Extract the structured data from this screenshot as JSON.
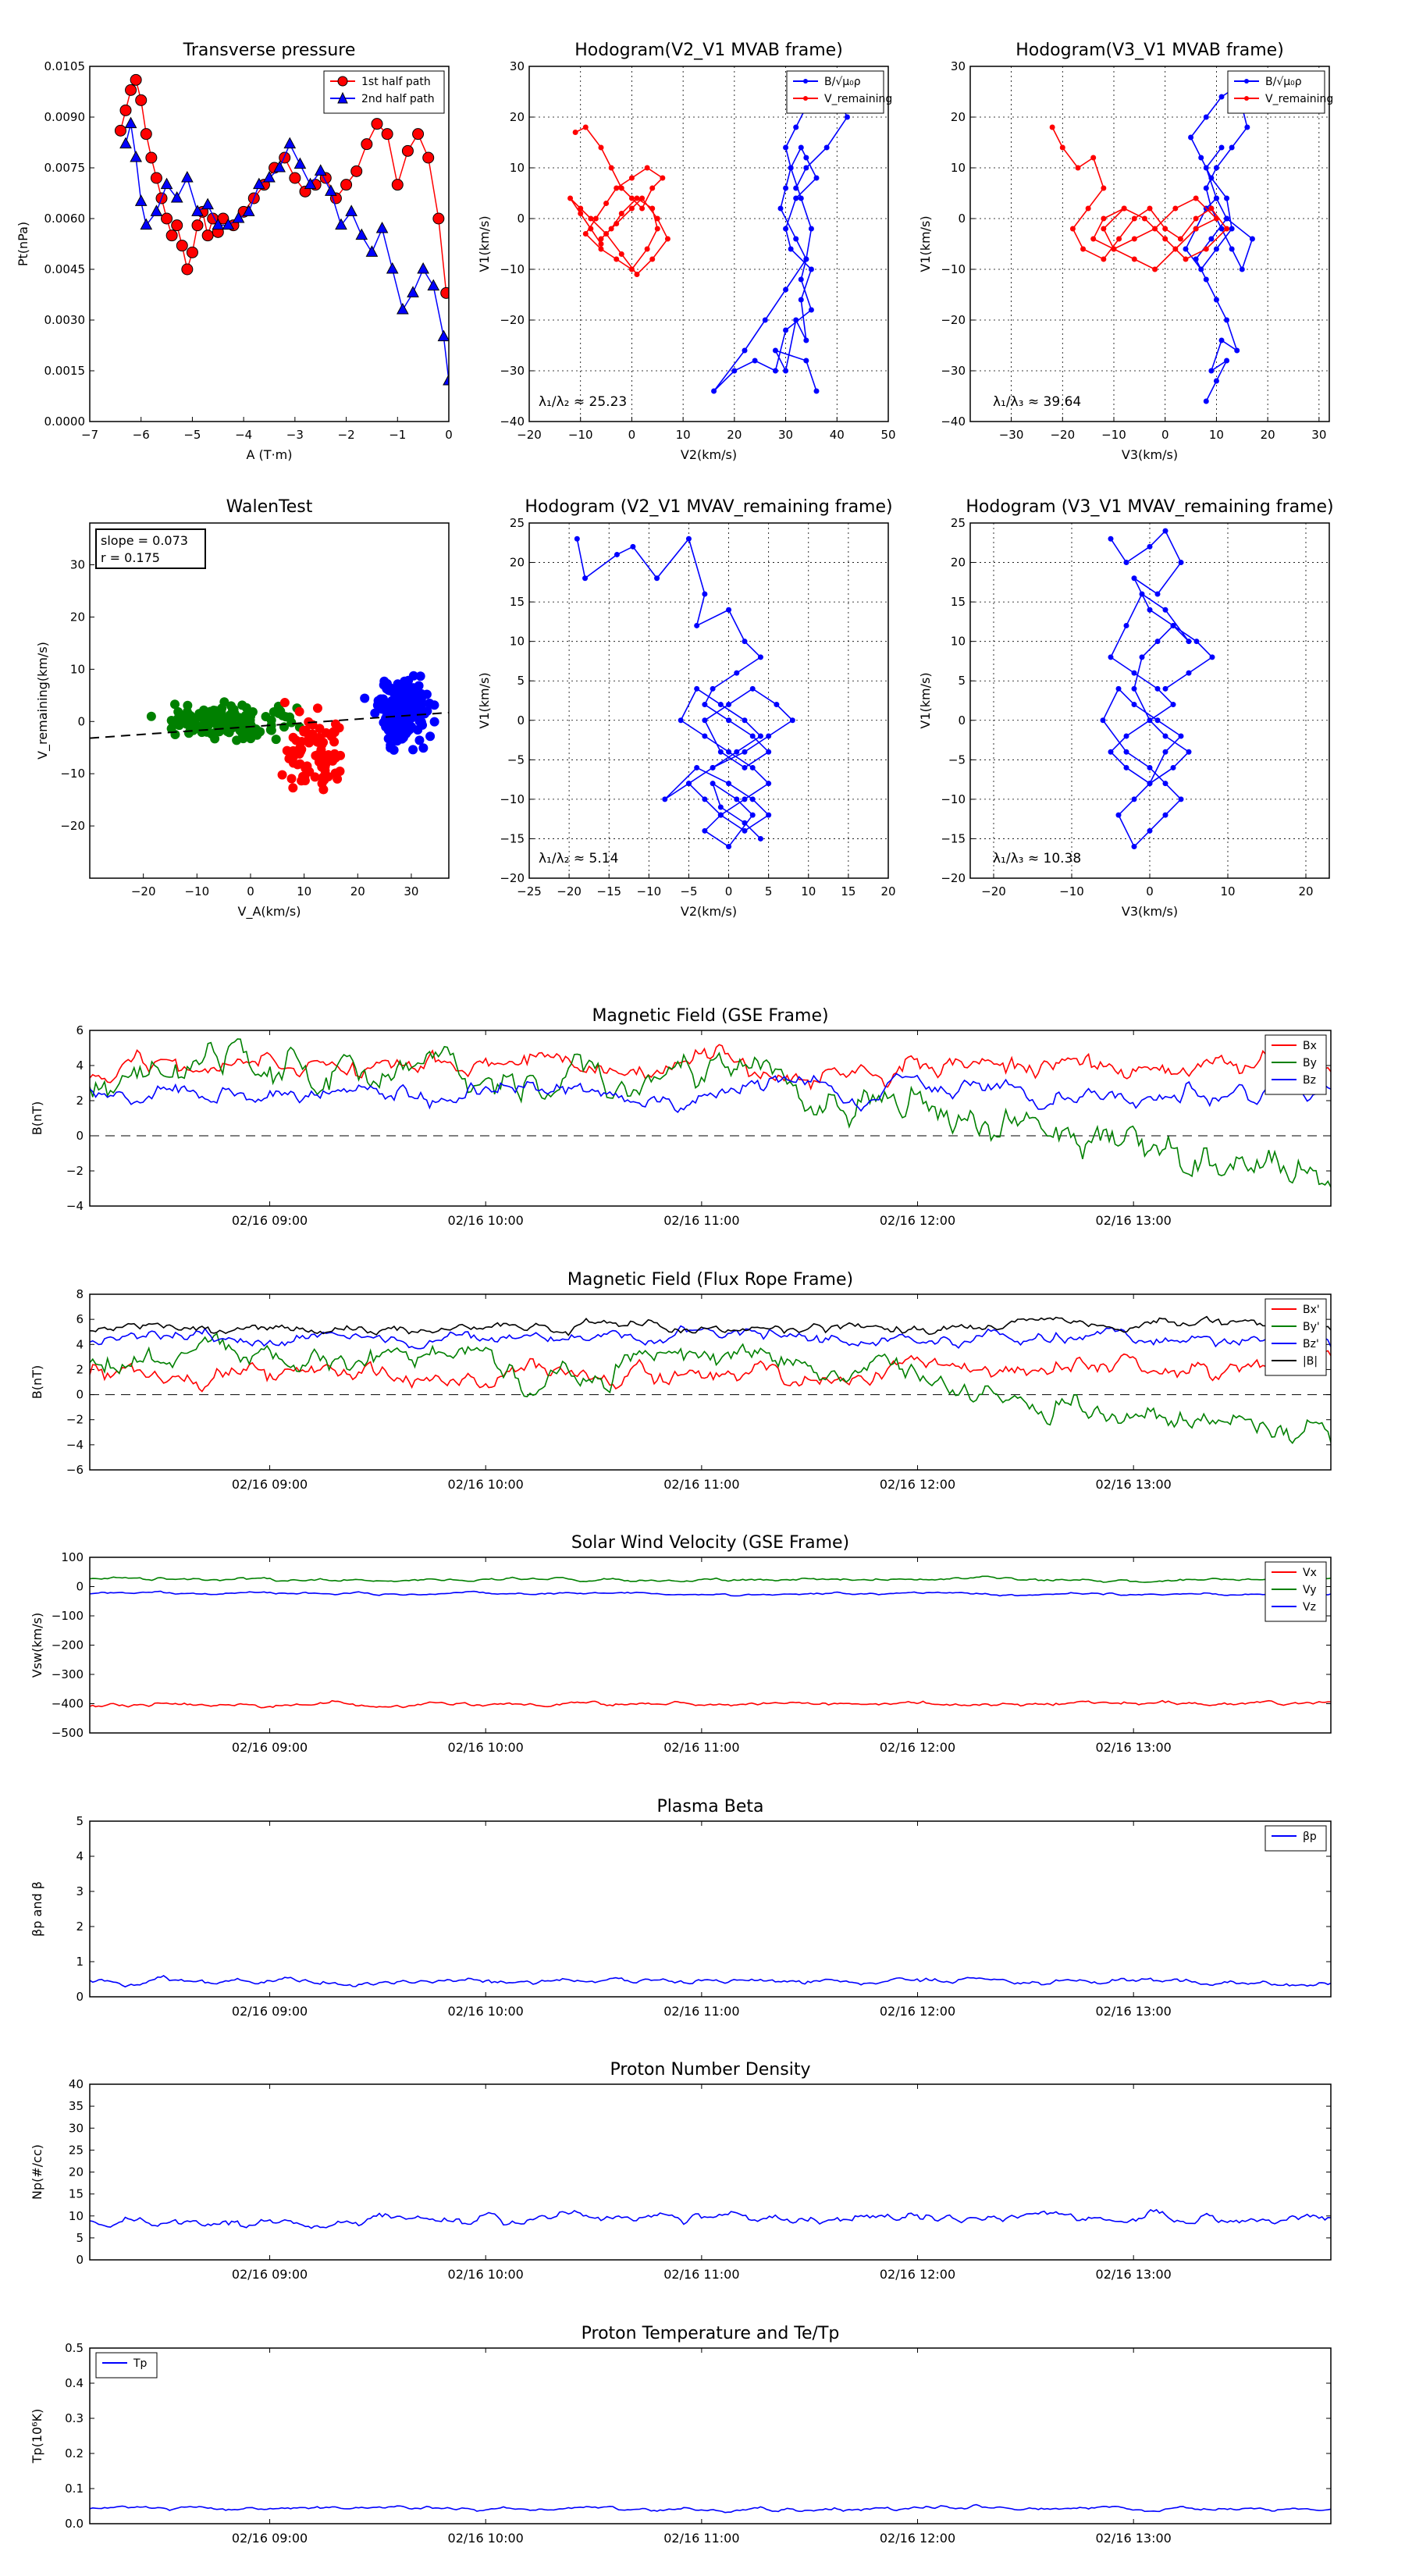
{
  "panels": {
    "transverse_pressure": {
      "title": "Transverse pressure",
      "xlabel": "A (T·m)",
      "ylabel": "Pt(nPa)",
      "xticks": [
        "−7",
        "−6",
        "−5",
        "−4",
        "−3",
        "−2",
        "−1",
        "0"
      ],
      "yticks": [
        "0.0000",
        "0.0015",
        "0.0030",
        "0.0045",
        "0.0060",
        "0.0075",
        "0.0090",
        "0.0105"
      ],
      "legend": [
        "1st half path",
        "2nd half path"
      ]
    },
    "hodo_v2v1_mvab": {
      "title": "Hodogram(V2_V1 MVAB frame)",
      "xlabel": "V2(km/s)",
      "ylabel": "V1(km/s)",
      "xticks": [
        "−20",
        "−10",
        "0",
        "10",
        "20",
        "30",
        "40",
        "50"
      ],
      "yticks": [
        "−40",
        "−30",
        "−20",
        "−10",
        "0",
        "10",
        "20",
        "30"
      ],
      "legend": [
        "B/√μ₀ρ",
        "V_remaining"
      ],
      "annotation": "λ₁/λ₂ ≈ 25.23"
    },
    "hodo_v3v1_mvab": {
      "title": "Hodogram(V3_V1 MVAB frame)",
      "xlabel": "V3(km/s)",
      "ylabel": "V1(km/s)",
      "xticks": [
        "−30",
        "−20",
        "−10",
        "0",
        "10",
        "20",
        "30"
      ],
      "yticks": [
        "−40",
        "−30",
        "−20",
        "−10",
        "0",
        "10",
        "20",
        "30"
      ],
      "legend": [
        "B/√μ₀ρ",
        "V_remaining"
      ],
      "annotation": "λ₁/λ₃ ≈ 39.64"
    },
    "walen": {
      "title": "WalenTest",
      "xlabel": "V_A(km/s)",
      "ylabel": "V_remaining(km/s)",
      "xticks": [
        "−20",
        "−10",
        "0",
        "10",
        "20",
        "30"
      ],
      "yticks": [
        "−20",
        "−10",
        "0",
        "10",
        "20",
        "30"
      ],
      "slope_text": "slope = 0.073",
      "r_text": "r = 0.175"
    },
    "hodo_v2v1_mvav": {
      "title": "Hodogram (V2_V1 MVAV_remaining frame)",
      "xlabel": "V2(km/s)",
      "ylabel": "V1(km/s)",
      "xticks": [
        "−25",
        "−20",
        "−15",
        "−10",
        "−5",
        "0",
        "5",
        "10",
        "15",
        "20"
      ],
      "yticks": [
        "−20",
        "−15",
        "−10",
        "−5",
        "0",
        "5",
        "10",
        "15",
        "20",
        "25"
      ],
      "annotation": "λ₁/λ₂ ≈ 5.14"
    },
    "hodo_v3v1_mvav": {
      "title": "Hodogram (V3_V1 MVAV_remaining frame)",
      "xlabel": "V3(km/s)",
      "ylabel": "V1(km/s)",
      "xticks": [
        "−20",
        "−10",
        "0",
        "10",
        "20"
      ],
      "yticks": [
        "−20",
        "−15",
        "−10",
        "−5",
        "0",
        "5",
        "10",
        "15",
        "20",
        "25"
      ],
      "annotation": "λ₁/λ₃ ≈ 10.38"
    }
  },
  "time_ticks": [
    "02/16 09:00",
    "02/16 10:00",
    "02/16 11:00",
    "02/16 12:00",
    "02/16 13:00"
  ],
  "timeseries": [
    {
      "title": "Magnetic Field (GSE Frame)",
      "ylabel": "B(nT)",
      "yticks": [
        "−4",
        "−2",
        "0",
        "2",
        "4",
        "6"
      ],
      "legend": [
        "Bx",
        "By",
        "Bz"
      ]
    },
    {
      "title": "Magnetic Field (Flux Rope Frame)",
      "ylabel": "B(nT)",
      "yticks": [
        "−6",
        "−4",
        "−2",
        "0",
        "2",
        "4",
        "6",
        "8"
      ],
      "legend": [
        "Bx'",
        "By'",
        "Bz'",
        "|B|"
      ]
    },
    {
      "title": "Solar Wind Velocity (GSE Frame)",
      "ylabel": "Vsw(km/s)",
      "yticks": [
        "−500",
        "−400",
        "−300",
        "−200",
        "−100",
        "0",
        "100"
      ],
      "legend": [
        "Vx",
        "Vy",
        "Vz"
      ]
    },
    {
      "title": "Plasma Beta",
      "ylabel": "βp and β",
      "yticks": [
        "0",
        "1",
        "2",
        "3",
        "4",
        "5"
      ],
      "legend": [
        "βp"
      ]
    },
    {
      "title": "Proton Number Density",
      "ylabel": "Np(#/cc)",
      "yticks": [
        "0",
        "5",
        "10",
        "15",
        "20",
        "25",
        "30",
        "35",
        "40"
      ],
      "legend": []
    },
    {
      "title": "Proton Temperature and Te/Tp",
      "ylabel": "Tp(10⁶K)",
      "yticks": [
        "0.0",
        "0.1",
        "0.2",
        "0.3",
        "0.4",
        "0.5"
      ],
      "legend": [
        "Tp"
      ]
    }
  ],
  "colors": {
    "red": "#ff0000",
    "blue": "#0000ff",
    "green": "#008000",
    "black": "#000000"
  },
  "chart_data": [
    {
      "type": "line",
      "title": "Transverse pressure",
      "xlabel": "A (T·m)",
      "ylabel": "Pt(nPa)",
      "xlim": [
        -7,
        0
      ],
      "ylim": [
        0,
        0.0105
      ],
      "series": [
        {
          "name": "1st half path",
          "color": "red",
          "marker": "circle",
          "x": [
            -6.4,
            -6.3,
            -6.2,
            -6.1,
            -6.0,
            -5.9,
            -5.8,
            -5.7,
            -5.6,
            -5.5,
            -5.4,
            -5.3,
            -5.2,
            -5.1,
            -5.0,
            -4.9,
            -4.8,
            -4.7,
            -4.6,
            -4.5,
            -4.4,
            -4.2,
            -4.0,
            -3.8,
            -3.6,
            -3.4,
            -3.2,
            -3.0,
            -2.8,
            -2.6,
            -2.4,
            -2.2,
            -2.0,
            -1.8,
            -1.6,
            -1.4,
            -1.2,
            -1.0,
            -0.8,
            -0.6,
            -0.4,
            -0.2,
            -0.05
          ],
          "y": [
            0.0086,
            0.0092,
            0.0098,
            0.0101,
            0.0095,
            0.0085,
            0.0078,
            0.0072,
            0.0066,
            0.006,
            0.0055,
            0.0058,
            0.0052,
            0.0045,
            0.005,
            0.0058,
            0.0062,
            0.0055,
            0.006,
            0.0056,
            0.006,
            0.0058,
            0.0062,
            0.0066,
            0.007,
            0.0075,
            0.0078,
            0.0072,
            0.0068,
            0.007,
            0.0072,
            0.0066,
            0.007,
            0.0074,
            0.0082,
            0.0088,
            0.0085,
            0.007,
            0.008,
            0.0085,
            0.0078,
            0.006,
            0.0038
          ]
        },
        {
          "name": "2nd half path",
          "color": "blue",
          "marker": "triangle",
          "x": [
            -6.3,
            -6.2,
            -6.1,
            -6.0,
            -5.9,
            -5.7,
            -5.5,
            -5.3,
            -5.1,
            -4.9,
            -4.7,
            -4.5,
            -4.3,
            -4.1,
            -3.9,
            -3.7,
            -3.5,
            -3.3,
            -3.1,
            -2.9,
            -2.7,
            -2.5,
            -2.3,
            -2.1,
            -1.9,
            -1.7,
            -1.5,
            -1.3,
            -1.1,
            -0.9,
            -0.7,
            -0.5,
            -0.3,
            -0.1,
            0.0
          ],
          "y": [
            0.0082,
            0.0088,
            0.0078,
            0.0065,
            0.0058,
            0.0062,
            0.007,
            0.0066,
            0.0072,
            0.0062,
            0.0064,
            0.0058,
            0.0058,
            0.006,
            0.0062,
            0.007,
            0.0072,
            0.0075,
            0.0082,
            0.0076,
            0.007,
            0.0074,
            0.0068,
            0.0058,
            0.0062,
            0.0055,
            0.005,
            0.0057,
            0.0045,
            0.0033,
            0.0038,
            0.0045,
            0.004,
            0.0025,
            0.0012
          ]
        }
      ]
    },
    {
      "type": "line",
      "title": "Hodogram(V2_V1 MVAB frame)",
      "xlim": [
        -20,
        50
      ],
      "ylim": [
        -40,
        30
      ],
      "series": [
        {
          "name": "B/√μ₀ρ",
          "color": "blue",
          "x": [
            36,
            34,
            28,
            30,
            32,
            34,
            33,
            35,
            31,
            30,
            32,
            36,
            34,
            33,
            31,
            30,
            29,
            32,
            34,
            33,
            35,
            30,
            28,
            24,
            20,
            16,
            22,
            26,
            30,
            34,
            35,
            33,
            31,
            30,
            32,
            34,
            36,
            38,
            40,
            42,
            38,
            34,
            32
          ],
          "y": [
            -34,
            -28,
            -26,
            -30,
            -20,
            -24,
            -16,
            -10,
            -6,
            -2,
            4,
            8,
            12,
            14,
            10,
            6,
            2,
            -4,
            -8,
            -12,
            -18,
            -22,
            -30,
            -28,
            -30,
            -34,
            -26,
            -20,
            -14,
            -8,
            -2,
            4,
            10,
            14,
            18,
            22,
            26,
            28,
            24,
            20,
            14,
            10,
            6
          ]
        },
        {
          "name": "V_remaining",
          "color": "red",
          "x": [
            -11,
            -9,
            -6,
            -4,
            -2,
            0,
            2,
            4,
            6,
            3,
            0,
            -3,
            -5,
            -7,
            -9,
            -6,
            -3,
            0,
            3,
            5,
            4,
            1,
            -2,
            -4,
            -6,
            -3,
            0,
            2,
            5,
            7,
            4,
            1,
            -2,
            -5,
            -8,
            -10,
            -12,
            -10,
            -8,
            -6
          ],
          "y": [
            17,
            18,
            14,
            10,
            6,
            4,
            2,
            6,
            8,
            10,
            8,
            6,
            3,
            0,
            -3,
            -6,
            -8,
            -10,
            -6,
            -2,
            2,
            4,
            1,
            -2,
            -4,
            -1,
            2,
            4,
            0,
            -4,
            -8,
            -11,
            -7,
            -3,
            0,
            2,
            4,
            1,
            -2,
            -5
          ]
        }
      ]
    },
    {
      "type": "line",
      "title": "Hodogram(V3_V1 MVAB frame)",
      "xlim": [
        -38,
        32
      ],
      "ylim": [
        -40,
        30
      ],
      "series": [
        {
          "name": "B/√μ₀ρ",
          "color": "blue",
          "x": [
            8,
            10,
            12,
            9,
            11,
            14,
            12,
            10,
            8,
            6,
            9,
            12,
            10,
            8,
            6,
            4,
            7,
            10,
            13,
            12,
            9,
            7,
            5,
            8,
            11,
            14,
            16,
            13,
            10,
            8,
            9,
            11,
            13,
            15,
            17,
            12,
            10,
            8,
            11
          ],
          "y": [
            -36,
            -32,
            -28,
            -30,
            -24,
            -26,
            -20,
            -16,
            -12,
            -8,
            -4,
            0,
            4,
            2,
            -2,
            -6,
            -10,
            -6,
            -2,
            4,
            8,
            12,
            16,
            20,
            24,
            26,
            18,
            14,
            10,
            6,
            2,
            -2,
            -6,
            -10,
            -4,
            0,
            4,
            10,
            14
          ]
        },
        {
          "name": "V_remaining",
          "color": "red",
          "x": [
            -22,
            -20,
            -17,
            -14,
            -12,
            -15,
            -18,
            -16,
            -12,
            -9,
            -6,
            -3,
            0,
            3,
            6,
            9,
            12,
            8,
            4,
            0,
            -4,
            -8,
            -12,
            -10,
            -6,
            -2,
            2,
            6,
            10,
            6,
            2,
            -2,
            -6,
            -10,
            -14,
            -12,
            -8
          ],
          "y": [
            18,
            14,
            10,
            12,
            6,
            2,
            -2,
            -6,
            -8,
            -4,
            0,
            2,
            -2,
            -4,
            0,
            2,
            -2,
            -6,
            -8,
            -4,
            0,
            2,
            -2,
            -6,
            -8,
            -10,
            -6,
            -2,
            0,
            4,
            2,
            -2,
            -4,
            -6,
            -4,
            0,
            2
          ]
        }
      ]
    },
    {
      "type": "scatter",
      "title": "WalenTest",
      "xlabel": "V_A(km/s)",
      "ylabel": "V_remaining(km/s)",
      "xlim": [
        -30,
        37
      ],
      "ylim": [
        -30,
        38
      ],
      "fit": {
        "slope": 0.073,
        "intercept": -1,
        "style": "dashed"
      },
      "series": [
        {
          "color": "green",
          "centroid": [
            -5,
            0
          ],
          "spread": [
            12,
            3
          ],
          "count": 150
        },
        {
          "color": "red",
          "centroid": [
            12,
            -6
          ],
          "spread": [
            6,
            8
          ],
          "count": 90
        },
        {
          "color": "blue",
          "centroid": [
            28,
            2
          ],
          "spread": [
            5,
            6
          ],
          "count": 180
        }
      ]
    },
    {
      "type": "line",
      "title": "Hodogram (V2_V1 MVAV_remaining frame)",
      "xlim": [
        -25,
        20
      ],
      "ylim": [
        -20,
        25
      ],
      "series": [
        {
          "color": "blue",
          "x": [
            -19,
            -18,
            -14,
            -12,
            -9,
            -5,
            -3,
            -4,
            0,
            2,
            4,
            1,
            -2,
            -3,
            0,
            3,
            5,
            2,
            -1,
            -3,
            0,
            3,
            6,
            8,
            5,
            2,
            -2,
            -5,
            -8,
            -4,
            0,
            3,
            5,
            2,
            -1,
            -3,
            -5,
            -2,
            1,
            4,
            2,
            -1,
            -4,
            -6,
            -3,
            0,
            3,
            5,
            2,
            -1,
            -3,
            0,
            3,
            1,
            -2,
            -1,
            2,
            4
          ],
          "y": [
            23,
            18,
            21,
            22,
            18,
            23,
            16,
            12,
            14,
            10,
            8,
            6,
            4,
            2,
            0,
            -2,
            -4,
            -6,
            -4,
            0,
            2,
            4,
            2,
            0,
            -2,
            -4,
            -6,
            -8,
            -10,
            -6,
            -8,
            -10,
            -12,
            -14,
            -12,
            -10,
            -8,
            -6,
            -4,
            -2,
            0,
            2,
            4,
            0,
            -2,
            -4,
            -6,
            -8,
            -10,
            -12,
            -14,
            -16,
            -12,
            -10,
            -8,
            -11,
            -13,
            -15
          ]
        }
      ]
    },
    {
      "type": "line",
      "title": "Hodogram (V3_V1 MVAV_remaining frame)",
      "xlim": [
        -23,
        23
      ],
      "ylim": [
        -20,
        25
      ],
      "series": [
        {
          "color": "blue",
          "x": [
            -5,
            -3,
            0,
            2,
            4,
            1,
            -2,
            0,
            3,
            5,
            2,
            -1,
            -3,
            -5,
            -2,
            1,
            3,
            0,
            -3,
            -5,
            -3,
            0,
            2,
            4,
            1,
            -2,
            -4,
            -6,
            -3,
            0,
            2,
            4,
            2,
            0,
            -2,
            -4,
            -2,
            0,
            3,
            5,
            2,
            0,
            -2,
            -1,
            1,
            3,
            6,
            8,
            5,
            2
          ],
          "y": [
            23,
            20,
            22,
            24,
            20,
            16,
            18,
            14,
            12,
            10,
            14,
            16,
            12,
            8,
            6,
            4,
            2,
            0,
            -2,
            -4,
            -6,
            -8,
            -4,
            -2,
            0,
            2,
            4,
            0,
            -4,
            -6,
            -8,
            -10,
            -12,
            -14,
            -16,
            -12,
            -10,
            -8,
            -6,
            -4,
            -2,
            0,
            4,
            8,
            10,
            12,
            10,
            8,
            6,
            4
          ]
        }
      ]
    }
  ]
}
